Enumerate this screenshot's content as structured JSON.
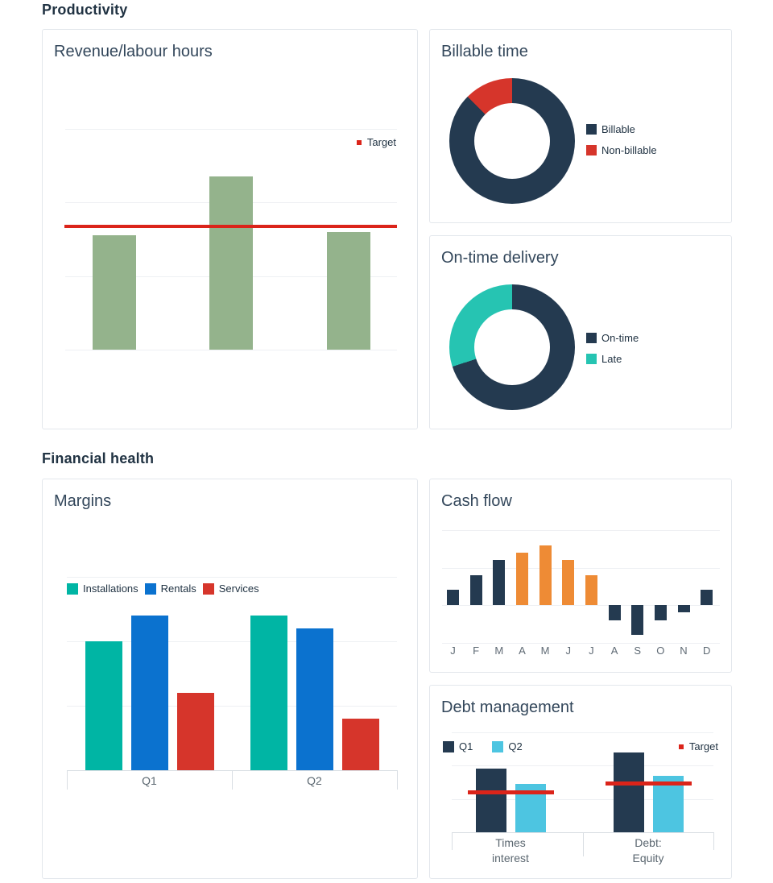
{
  "page": {
    "section_productivity": "Productivity",
    "section_financial": "Financial health"
  },
  "cards": {
    "revenue": {
      "title": "Revenue/labour hours"
    },
    "billable": {
      "title": "Billable time"
    },
    "ontime": {
      "title": "On-time delivery"
    },
    "margins": {
      "title": "Margins"
    },
    "cashflow": {
      "title": "Cash flow"
    },
    "debt": {
      "title": "Debt management"
    }
  },
  "colors": {
    "navy": "#243a50",
    "sage_green": "#94b38c",
    "red": "#d6352b",
    "target_red": "#db241a",
    "teal_bright": "#26c4b2",
    "teal": "#00b5a4",
    "blue": "#0b72cf",
    "orange": "#ee8b35",
    "cyan": "#4dc5e1",
    "heading_text": "#213343",
    "card_title_text": "#33475b",
    "axis_label_text": "#5b6770",
    "gridline": "#eef0f3",
    "axis_line": "#d9dee3",
    "card_border": "#e3e7ec"
  },
  "chart_data": [
    {
      "id": "revenue_labour_hours",
      "type": "bar",
      "title": "Revenue/labour hours",
      "categories": [
        "",
        "",
        ""
      ],
      "values": [
        1.55,
        2.35,
        1.6
      ],
      "target": 1.67,
      "ylim": [
        0,
        3
      ],
      "grid": true,
      "bar_color": "#94b38c",
      "target_color": "#db241a",
      "legend": [
        {
          "label": "Target",
          "color": "#db241a",
          "style": "outline-square"
        }
      ],
      "legend_position": "top-right"
    },
    {
      "id": "billable_time",
      "type": "pie",
      "title": "Billable time",
      "donut": true,
      "series": [
        {
          "name": "Billable",
          "value": 87.5,
          "color": "#243a50"
        },
        {
          "name": "Non-billable",
          "value": 12.5,
          "color": "#d6352b"
        }
      ],
      "legend_position": "right"
    },
    {
      "id": "on_time_delivery",
      "type": "pie",
      "title": "On-time delivery",
      "donut": true,
      "series": [
        {
          "name": "On-time",
          "value": 70,
          "color": "#243a50"
        },
        {
          "name": "Late",
          "value": 30,
          "color": "#26c4b2"
        }
      ],
      "legend_position": "right"
    },
    {
      "id": "margins",
      "type": "bar",
      "title": "Margins",
      "categories": [
        "Q1",
        "Q2"
      ],
      "series": [
        {
          "name": "Installations",
          "color": "#00b5a4",
          "values": [
            2.0,
            2.4
          ]
        },
        {
          "name": "Rentals",
          "color": "#0b72cf",
          "values": [
            2.4,
            2.2
          ]
        },
        {
          "name": "Services",
          "color": "#d6352b",
          "values": [
            1.2,
            0.8
          ]
        }
      ],
      "ylim": [
        0,
        3
      ],
      "grid": true,
      "legend_position": "top-left"
    },
    {
      "id": "cash_flow",
      "type": "bar",
      "title": "Cash flow",
      "categories": [
        "J",
        "F",
        "M",
        "A",
        "M",
        "J",
        "J",
        "A",
        "S",
        "O",
        "N",
        "D"
      ],
      "values": [
        0.4,
        0.8,
        1.2,
        1.4,
        1.6,
        1.2,
        0.8,
        -0.4,
        -0.8,
        -0.4,
        -0.2,
        0.4
      ],
      "bar_colors": [
        "#243a50",
        "#243a50",
        "#243a50",
        "#ee8b35",
        "#ee8b35",
        "#ee8b35",
        "#ee8b35",
        "#243a50",
        "#243a50",
        "#243a50",
        "#243a50",
        "#243a50"
      ],
      "ylim": [
        -1,
        2
      ],
      "grid": true
    },
    {
      "id": "debt_management",
      "type": "bar",
      "title": "Debt management",
      "categories": [
        "Times\ninterest",
        "Debt:\nEquity"
      ],
      "series": [
        {
          "name": "Q1",
          "color": "#243a50",
          "values": [
            1.9,
            2.4
          ]
        },
        {
          "name": "Q2",
          "color": "#4dc5e1",
          "values": [
            1.45,
            1.7
          ]
        }
      ],
      "targets": [
        1.2,
        1.47
      ],
      "target_color": "#db241a",
      "ylim": [
        0,
        3
      ],
      "grid": true,
      "legend": [
        {
          "label": "Q1",
          "color": "#243a50",
          "style": "square"
        },
        {
          "label": "Q2",
          "color": "#4dc5e1",
          "style": "square"
        },
        {
          "label": "Target",
          "color": "#db241a",
          "style": "outline-square"
        }
      ]
    }
  ]
}
